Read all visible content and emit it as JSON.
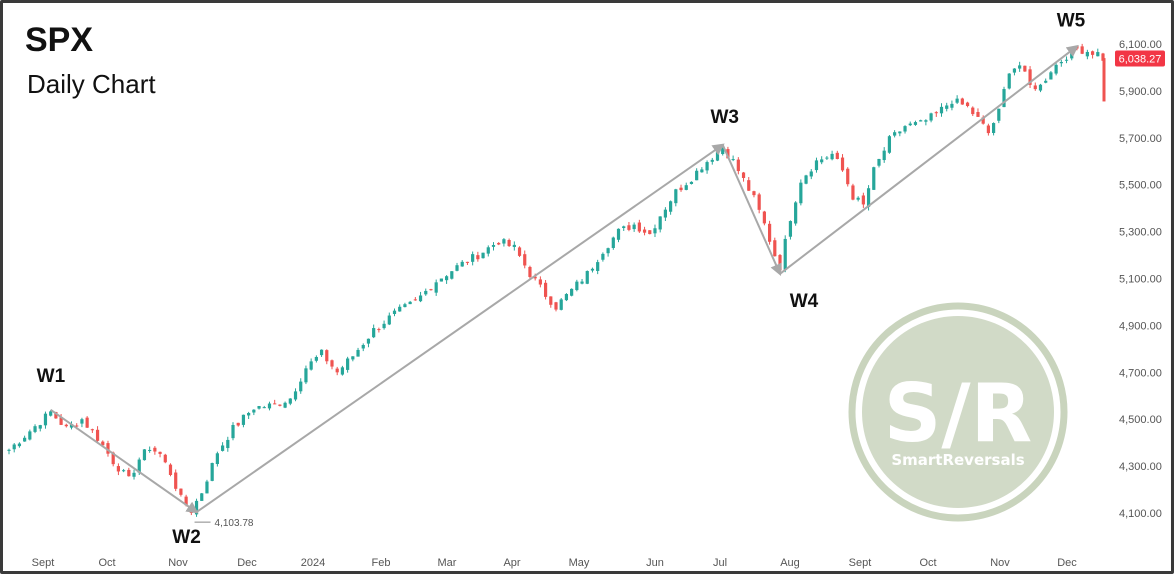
{
  "chart_data": {
    "type": "candlestick",
    "title": "SPX",
    "subtitle": "Daily Chart",
    "y_ticks": [
      4100,
      4300,
      4500,
      4700,
      4900,
      5100,
      5300,
      5500,
      5700,
      5900,
      6100
    ],
    "y_tick_labels": [
      "4,100.00",
      "4,300.00",
      "4,500.00",
      "4,700.00",
      "4,900.00",
      "5,100.00",
      "5,300.00",
      "5,500.00",
      "5,700.00",
      "5,900.00",
      "6,100.00"
    ],
    "ylim": [
      4060,
      6140
    ],
    "x_labels": [
      "Sept",
      "Oct",
      "Nov",
      "Dec",
      "2024",
      "Feb",
      "Mar",
      "Apr",
      "May",
      "Jun",
      "Jul",
      "Aug",
      "Sept",
      "Oct",
      "Nov",
      "Dec"
    ],
    "close_path": [
      [
        0,
        4370
      ],
      [
        4,
        4450
      ],
      [
        8,
        4530
      ],
      [
        11,
        4460
      ],
      [
        14,
        4500
      ],
      [
        17,
        4420
      ],
      [
        20,
        4320
      ],
      [
        23,
        4240
      ],
      [
        25,
        4330
      ],
      [
        27,
        4380
      ],
      [
        29,
        4350
      ],
      [
        31,
        4270
      ],
      [
        33,
        4160
      ],
      [
        35,
        4110
      ],
      [
        37,
        4190
      ],
      [
        40,
        4360
      ],
      [
        43,
        4460
      ],
      [
        47,
        4550
      ],
      [
        51,
        4560
      ],
      [
        54,
        4590
      ],
      [
        57,
        4720
      ],
      [
        60,
        4780
      ],
      [
        63,
        4700
      ],
      [
        66,
        4770
      ],
      [
        70,
        4880
      ],
      [
        74,
        4950
      ],
      [
        78,
        5000
      ],
      [
        82,
        5090
      ],
      [
        86,
        5150
      ],
      [
        90,
        5200
      ],
      [
        94,
        5260
      ],
      [
        97,
        5230
      ],
      [
        100,
        5120
      ],
      [
        103,
        5030
      ],
      [
        105,
        4980
      ],
      [
        108,
        5050
      ],
      [
        111,
        5120
      ],
      [
        114,
        5220
      ],
      [
        117,
        5300
      ],
      [
        120,
        5330
      ],
      [
        123,
        5290
      ],
      [
        125,
        5370
      ],
      [
        128,
        5470
      ],
      [
        131,
        5530
      ],
      [
        133,
        5580
      ],
      [
        135,
        5620
      ],
      [
        137,
        5660
      ],
      [
        139,
        5600
      ],
      [
        141,
        5520
      ],
      [
        143,
        5440
      ],
      [
        145,
        5330
      ],
      [
        147,
        5200
      ],
      [
        148,
        5150
      ],
      [
        150,
        5360
      ],
      [
        152,
        5520
      ],
      [
        155,
        5600
      ],
      [
        158,
        5630
      ],
      [
        160,
        5560
      ],
      [
        162,
        5450
      ],
      [
        164,
        5410
      ],
      [
        166,
        5560
      ],
      [
        169,
        5690
      ],
      [
        172,
        5750
      ],
      [
        175,
        5760
      ],
      [
        178,
        5800
      ],
      [
        181,
        5860
      ],
      [
        184,
        5830
      ],
      [
        186,
        5780
      ],
      [
        188,
        5720
      ],
      [
        190,
        5810
      ],
      [
        192,
        5990
      ],
      [
        194,
        6010
      ],
      [
        196,
        5920
      ],
      [
        198,
        5920
      ],
      [
        200,
        5990
      ],
      [
        203,
        6050
      ],
      [
        205,
        6080
      ],
      [
        207,
        6070
      ],
      [
        209,
        6060
      ],
      [
        210,
        6038
      ]
    ],
    "waves": [
      {
        "label": "W1",
        "x": 8,
        "y": 4540
      },
      {
        "label": "W2",
        "x": 36,
        "y": 4103.78
      },
      {
        "label": "W3",
        "x": 137,
        "y": 5670
      },
      {
        "label": "W4",
        "x": 148,
        "y": 5120
      },
      {
        "label": "W5",
        "x": 205,
        "y": 6090
      }
    ],
    "low_annotation": "4,103.78",
    "last_price": "6,038.27",
    "last_price_value": 6038.27,
    "colors": {
      "up": "#26a69a",
      "down": "#ef5350",
      "arrow": "#a8a8a8",
      "tag": "#f23645"
    }
  },
  "watermark": {
    "text": "S/R",
    "brand": "SmartReversals",
    "color": "#c9d4bd"
  }
}
